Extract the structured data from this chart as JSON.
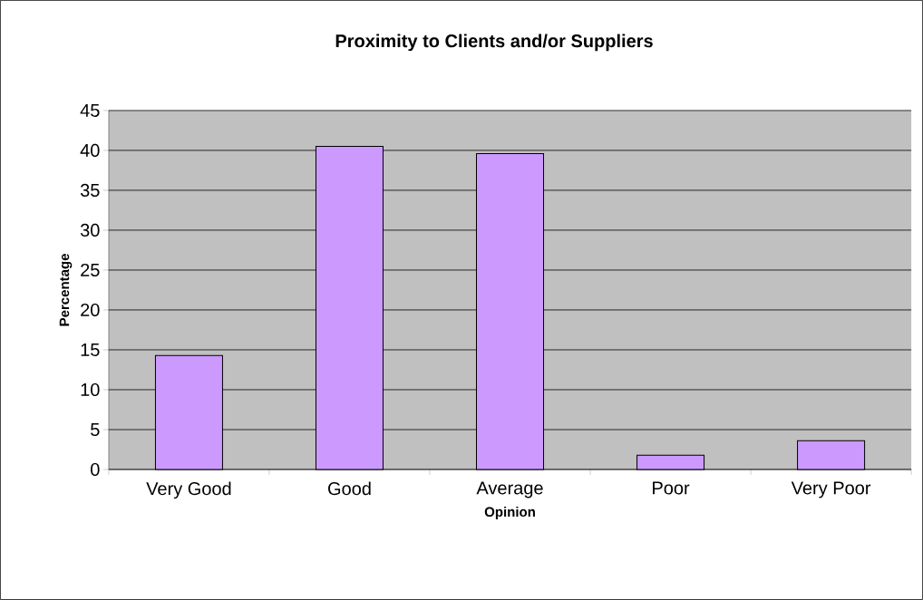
{
  "chart_data": {
    "type": "bar",
    "title": "Proximity to Clients and/or Suppliers",
    "xlabel": "Opinion",
    "ylabel": "Percentage",
    "categories": [
      "Very Good",
      "Good",
      "Average",
      "Poor",
      "Very Poor"
    ],
    "values": [
      14.3,
      40.5,
      39.6,
      1.8,
      3.6
    ],
    "color": "#cc99ff",
    "ylim": [
      0,
      45
    ],
    "yticks": [
      0,
      5,
      10,
      15,
      20,
      25,
      30,
      35,
      40,
      45
    ],
    "grid": "y"
  }
}
